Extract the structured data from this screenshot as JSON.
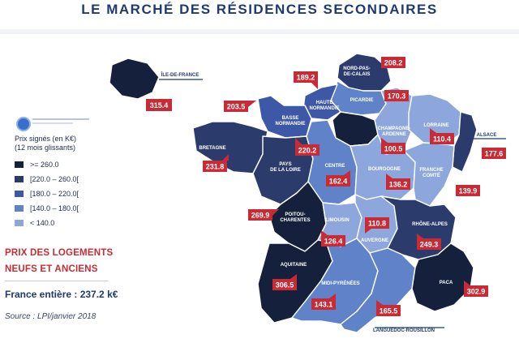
{
  "title": "LE MARCHÉ DES RÉSIDENCES SECONDAIRES",
  "legend": {
    "title_line1": "Prix signés (en K€)",
    "title_line2": "(12 mois glissants)",
    "items": [
      {
        "label": ">= 260.0",
        "color": "#15203d"
      },
      {
        "label": "[220.0 – 260.0[",
        "color": "#2b3b6c"
      },
      {
        "label": "[180.0 – 220.0[",
        "color": "#3c58a6"
      },
      {
        "label": "[140.0 – 180.0[",
        "color": "#5f82c9"
      },
      {
        "label": "< 140.0",
        "color": "#8da7dc"
      }
    ]
  },
  "prix_line1": "PRIX DES LOGEMENTS",
  "prix_line2": "NEUFS ET ANCIENS",
  "france_label": "France entière : 237.2 k€",
  "source": "Source : LPI/janvier 2018",
  "regions": {
    "ile_de_france": {
      "name": "ÎLE-DE-FRANCE",
      "price": "315.4"
    },
    "nord": {
      "name1": "NORD-PAS-",
      "name2": "DE-CALAIS",
      "price": "208.2"
    },
    "picardie": {
      "name": "PICARDIE",
      "price": "170.3"
    },
    "haute_normandie": {
      "name1": "HAUTE",
      "name2": "NORMANDIE",
      "price": "189.2"
    },
    "basse_normandie": {
      "name1": "BASSE",
      "name2": "NORMANDIE",
      "price": "203.5"
    },
    "bretagne": {
      "name": "BRETAGNE",
      "price": "231.8"
    },
    "pays_loire": {
      "name1": "PAYS",
      "name2": "DE LA LOIRE",
      "price": "220.2"
    },
    "centre": {
      "name": "CENTRE",
      "price": "162.4"
    },
    "champagne": {
      "name1": "CHAMPAGNE-",
      "name2": "ARDENNE",
      "price": "100.5"
    },
    "lorraine": {
      "name": "LORRAINE",
      "price": "110.4"
    },
    "alsace": {
      "name": "ALSACE",
      "price": "177.6"
    },
    "bourgogne": {
      "name": "BOURGOGNE",
      "price": "136.2"
    },
    "franche_comte": {
      "name1": "FRANCHE",
      "name2": "COMTÉ",
      "price": "139.9"
    },
    "poitou": {
      "name1": "POITOU-",
      "name2": "CHARENTES",
      "price": "269.9"
    },
    "limousin": {
      "name": "LIMOUSIN",
      "price": "126.4"
    },
    "auvergne": {
      "name": "AUVERGNE",
      "price": "110.8"
    },
    "rhone_alpes": {
      "name": "RHÔNE-ALPES",
      "price": "249.3"
    },
    "aquitaine": {
      "name": "AQUITAINE",
      "price": "306.5"
    },
    "midi_pyrenees": {
      "name": "MIDI-PYRÉNÉES",
      "price": "143.1"
    },
    "languedoc": {
      "name": "LANGUEDOC-ROUSILLON",
      "price": "165.5"
    },
    "paca": {
      "name": "PACA",
      "price": "302.9"
    }
  }
}
